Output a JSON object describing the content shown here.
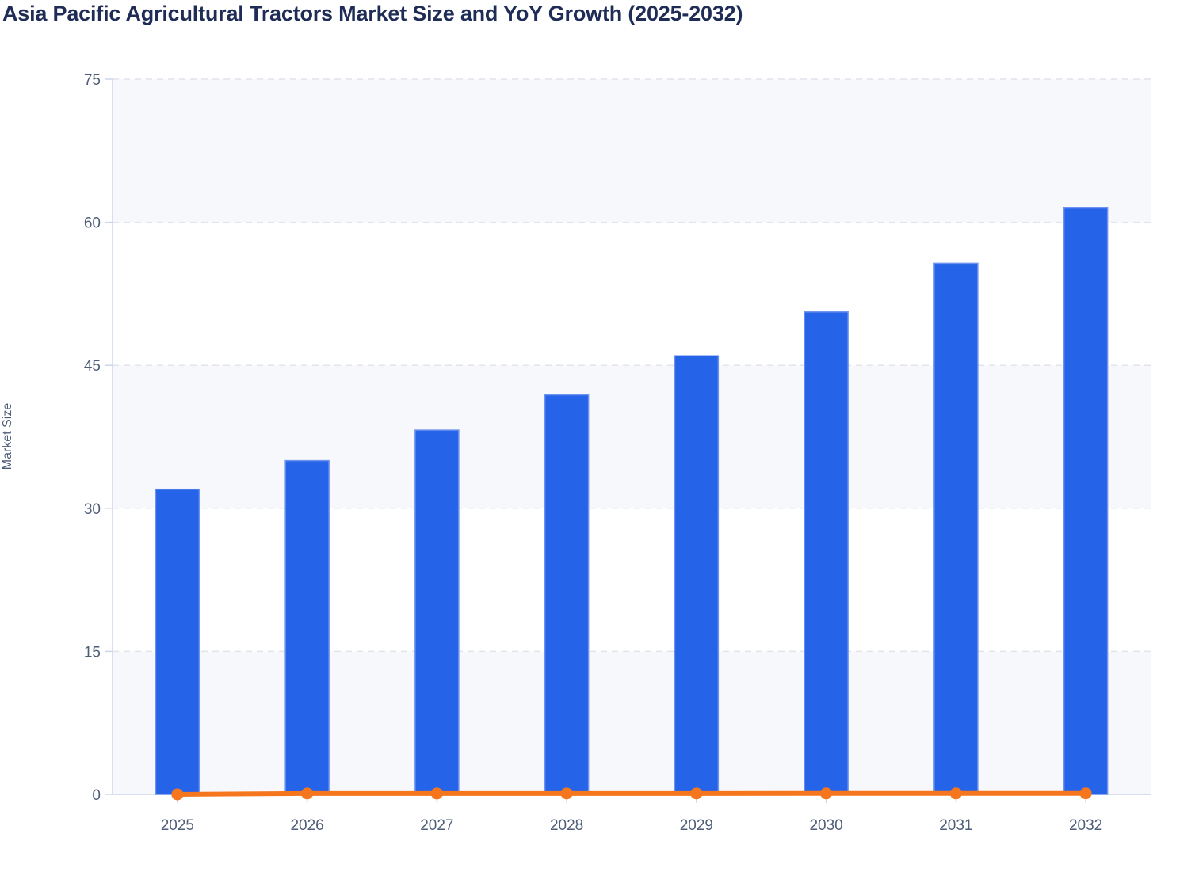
{
  "chart_data": {
    "type": "bar",
    "title": "Asia Pacific Agricultural Tractors Market Size and YoY Growth (2025-2032)",
    "categories": [
      "2025",
      "2026",
      "2027",
      "2028",
      "2029",
      "2030",
      "2031",
      "2032"
    ],
    "series": [
      {
        "name": "Market Size",
        "type": "bar",
        "color": "#2563e8",
        "border_color": "#6e93ee",
        "values": [
          32.0,
          35.0,
          38.2,
          41.9,
          46.0,
          50.6,
          55.7,
          61.5
        ]
      },
      {
        "name": "YoY Growth",
        "type": "line",
        "color": "#f5761d",
        "values": [
          0,
          0.094,
          0.091,
          0.097,
          0.098,
          0.1,
          0.101,
          0.104
        ]
      }
    ],
    "xlabel": "",
    "ylabel": "Market Size",
    "ylim": [
      0,
      75
    ],
    "yticks": [
      0,
      15,
      30,
      45,
      60,
      75
    ],
    "grid": "horizontal-dashed",
    "alternate_bands": [
      [
        0,
        15
      ],
      [
        30,
        45
      ],
      [
        60,
        75
      ]
    ],
    "legend_position": "none"
  },
  "colors": {
    "title": "#1e2c56",
    "tick_label": "#4e5d78",
    "axis_title": "#4e5d78",
    "gridline": "#e2e4ea",
    "band": "#f7f8fb",
    "axis_line": "#ccd6eb",
    "background": "#ffffff"
  }
}
